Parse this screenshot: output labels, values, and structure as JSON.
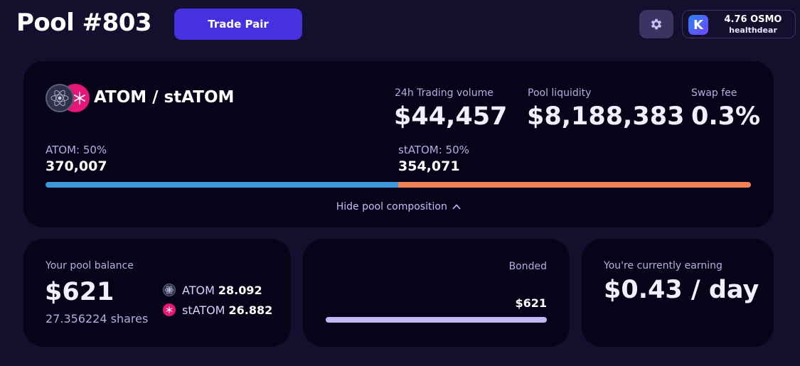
{
  "header": {
    "title": "Pool #803",
    "trade_button": "Trade Pair",
    "settings_icon": "gear-icon",
    "wallet": {
      "icon_letter": "K",
      "balance": "4.76 OSMO",
      "username": "healthdear"
    }
  },
  "pool": {
    "pair_name": "ATOM / stATOM",
    "stats": [
      {
        "label": "24h Trading volume",
        "value": "$44,457"
      },
      {
        "label": "Pool liquidity",
        "value": "$8,188,383"
      },
      {
        "label": "Swap fee",
        "value": "0.3%"
      }
    ],
    "composition": [
      {
        "label": "ATOM: 50%",
        "amount": "370,007",
        "share": 0.5,
        "color": "#3d97d9"
      },
      {
        "label": "stATOM: 50%",
        "amount": "354,071",
        "share": 0.5,
        "color": "#f08258"
      }
    ],
    "hide_link": "Hide pool composition"
  },
  "balance": {
    "label": "Your pool balance",
    "value": "$621",
    "shares": "27.356224 shares",
    "assets": [
      {
        "name": "ATOM",
        "amount": "28.092",
        "icon": "atom-icon"
      },
      {
        "name": "stATOM",
        "amount": "26.882",
        "icon": "statom-icon"
      }
    ]
  },
  "bonded": {
    "label": "Bonded",
    "amount": "$621",
    "fill": 1.0
  },
  "earning": {
    "label": "You're currently earning",
    "value": "$0.43 / day"
  }
}
